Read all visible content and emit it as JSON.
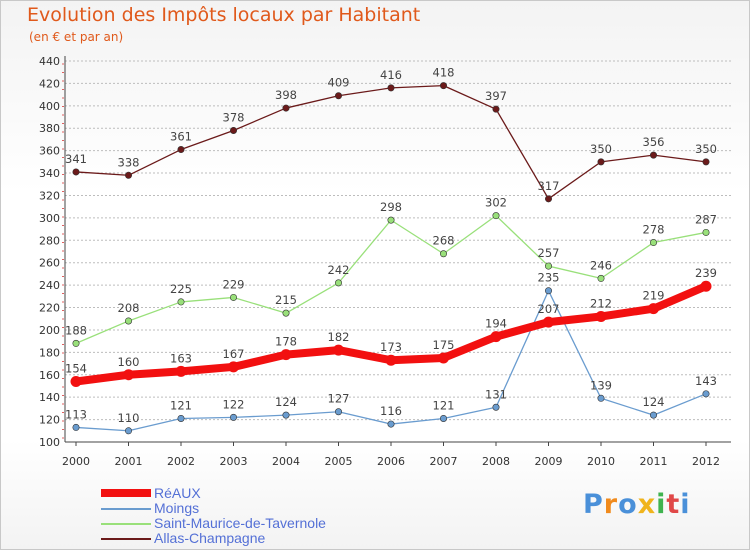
{
  "chart_data": {
    "type": "line",
    "title": "Evolution des Impôts locaux par Habitant",
    "subtitle": "(en € et par an)",
    "categories": [
      "2000",
      "2001",
      "2002",
      "2003",
      "2004",
      "2005",
      "2006",
      "2007",
      "2008",
      "2009",
      "2010",
      "2011",
      "2012"
    ],
    "ylim": [
      100,
      440
    ],
    "yticks": [
      100,
      120,
      140,
      160,
      180,
      200,
      220,
      240,
      260,
      280,
      300,
      320,
      340,
      360,
      380,
      400,
      420,
      440
    ],
    "grid": "horizontal",
    "legend_position": "bottom-left",
    "series": [
      {
        "name": "Allas-Champagne",
        "color": "#6b1a1a",
        "values": [
          341,
          338,
          361,
          378,
          398,
          409,
          416,
          418,
          397,
          317,
          350,
          356,
          350
        ]
      },
      {
        "name": "Saint-Maurice-de-Tavernole",
        "color": "#99e07a",
        "values": [
          188,
          208,
          225,
          229,
          215,
          242,
          298,
          268,
          302,
          257,
          246,
          278,
          287
        ]
      },
      {
        "name": "Moings",
        "color": "#6a9ccf",
        "values": [
          113,
          110,
          121,
          122,
          124,
          127,
          116,
          121,
          131,
          235,
          139,
          124,
          143
        ]
      },
      {
        "name": "RéAUX",
        "color": "#f21010",
        "values": [
          154,
          160,
          163,
          167,
          178,
          182,
          173,
          175,
          194,
          207,
          212,
          219,
          239
        ]
      }
    ],
    "legend": [
      "RéAUX",
      "Moings",
      "Saint-Maurice-de-Tavernole",
      "Allas-Champagne"
    ]
  },
  "logo": {
    "text": "Proxiti",
    "letters": [
      {
        "ch": "P",
        "color": "#4a90d9"
      },
      {
        "ch": "r",
        "color": "#f08a1c"
      },
      {
        "ch": "o",
        "color": "#4a90d9"
      },
      {
        "ch": "x",
        "color": "#f0b41c"
      },
      {
        "ch": "i",
        "color": "#3fb34f"
      },
      {
        "ch": "t",
        "color": "#e04848"
      },
      {
        "ch": "i",
        "color": "#4a90d9"
      }
    ]
  }
}
